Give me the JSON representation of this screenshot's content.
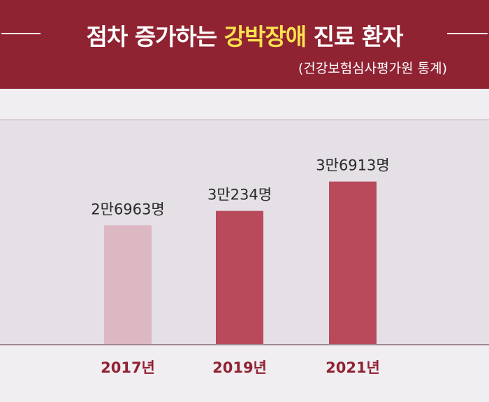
{
  "header": {
    "title_part1": "점차 증가하는 ",
    "title_highlight": "강박장애",
    "title_part2": " 진료 환자",
    "source": "(건강보험심사평가원 통계)"
  },
  "colors": {
    "header_bg": "#8f2332",
    "highlight": "#fde24d",
    "bar_light": "#dcb8c3",
    "bar_dark": "#b84a5c",
    "x_label": "#8f2332"
  },
  "chart_data": {
    "type": "bar",
    "categories": [
      "2017년",
      "2019년",
      "2021년"
    ],
    "values": [
      26963,
      30234,
      36913
    ],
    "data_labels": [
      "2만6963명",
      "3만234명",
      "3만6913명"
    ],
    "bar_colors": [
      "#dcb8c3",
      "#b84a5c",
      "#b84a5c"
    ],
    "title": "",
    "xlabel": "",
    "ylabel": "",
    "ylim": [
      0,
      51000
    ],
    "grid": false,
    "legend": "none"
  }
}
